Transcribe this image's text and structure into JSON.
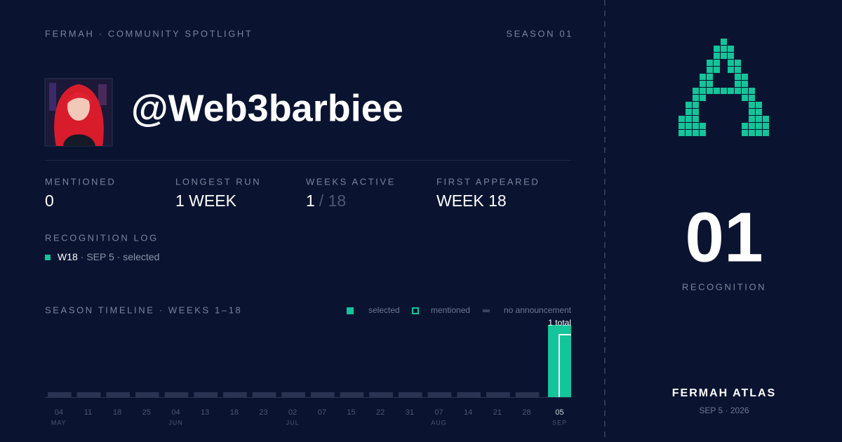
{
  "header": {
    "brand": "FERMAH · COMMUNITY SPOTLIGHT",
    "season": "SEASON 01"
  },
  "profile": {
    "handle": "@Web3barbiee"
  },
  "stats": [
    {
      "label": "MENTIONED",
      "value": "0"
    },
    {
      "label": "LONGEST RUN",
      "value": "1 WEEK"
    },
    {
      "label": "WEEKS ACTIVE",
      "value": "1",
      "of": "/ 18"
    },
    {
      "label": "FIRST APPEARED",
      "value": "WEEK 18"
    }
  ],
  "log": {
    "title": "RECOGNITION LOG",
    "entries": [
      {
        "week": "W18",
        "detail": "· SEP 5 · selected"
      }
    ]
  },
  "timeline": {
    "title": "SEASON TIMELINE · WEEKS 1–18",
    "legend": [
      "selected",
      "mentioned",
      "no announcement"
    ],
    "days": [
      "04",
      "11",
      "18",
      "25",
      "04",
      "13",
      "18",
      "23",
      "02",
      "07",
      "15",
      "22",
      "31",
      "07",
      "14",
      "21",
      "28",
      "05"
    ],
    "months": [
      "MAY",
      null,
      null,
      null,
      "JUN",
      null,
      null,
      null,
      "JUL",
      null,
      null,
      null,
      null,
      "AUG",
      null,
      null,
      null,
      "SEP"
    ],
    "values": [
      0,
      0,
      0,
      0,
      0,
      0,
      0,
      0,
      0,
      0,
      0,
      0,
      0,
      0,
      0,
      0,
      0,
      1
    ],
    "value_labels": [
      null,
      null,
      null,
      null,
      null,
      null,
      null,
      null,
      null,
      null,
      null,
      null,
      null,
      null,
      null,
      null,
      null,
      "1 total"
    ],
    "ylim": [
      0,
      1
    ]
  },
  "side": {
    "count": "01",
    "count_label": "RECOGNITION",
    "footer_title": "FERMAH ATLAS",
    "footer_date": "SEP 5 · 2026"
  }
}
